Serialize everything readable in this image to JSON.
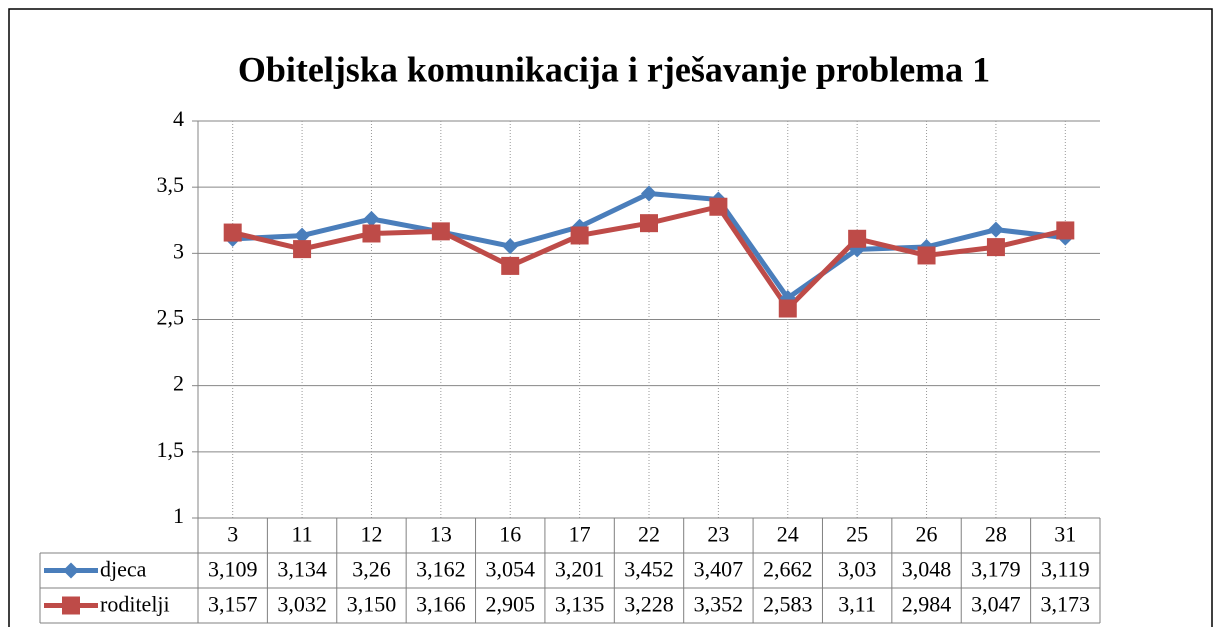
{
  "chart_data": {
    "type": "line",
    "title": "Obiteljska komunikacija i rješavanje problema 1",
    "categories": [
      "3",
      "11",
      "12",
      "13",
      "16",
      "17",
      "22",
      "23",
      "24",
      "25",
      "26",
      "28",
      "31"
    ],
    "series": [
      {
        "name": "djeca",
        "color": "#4a7ebb",
        "marker": "diamond",
        "values": [
          3.109,
          3.134,
          3.26,
          3.162,
          3.054,
          3.201,
          3.452,
          3.407,
          2.662,
          3.03,
          3.048,
          3.179,
          3.119
        ],
        "value_labels": [
          "3,109",
          "3,134",
          "3,26",
          "3,162",
          "3,054",
          "3,201",
          "3,452",
          "3,407",
          "2,662",
          "3,03",
          "3,048",
          "3,179",
          "3,119"
        ]
      },
      {
        "name": "roditelji",
        "color": "#be4b48",
        "marker": "square",
        "values": [
          3.157,
          3.032,
          3.15,
          3.166,
          2.905,
          3.135,
          3.228,
          3.352,
          2.583,
          3.11,
          2.984,
          3.047,
          3.173
        ],
        "value_labels": [
          "3,157",
          "3,032",
          "3,150",
          "3,166",
          "2,905",
          "3,135",
          "3,228",
          "3,352",
          "2,583",
          "3,11",
          "2,984",
          "3,047",
          "3,173"
        ]
      }
    ],
    "ylim": [
      1,
      4
    ],
    "yticks": [
      1,
      {
        "value": 1.5,
        "label": "1,5"
      },
      2,
      {
        "value": 2.5,
        "label": "2,5"
      },
      3,
      {
        "value": 3.5,
        "label": "3,5"
      },
      4
    ],
    "grid": true,
    "data_table": true
  }
}
